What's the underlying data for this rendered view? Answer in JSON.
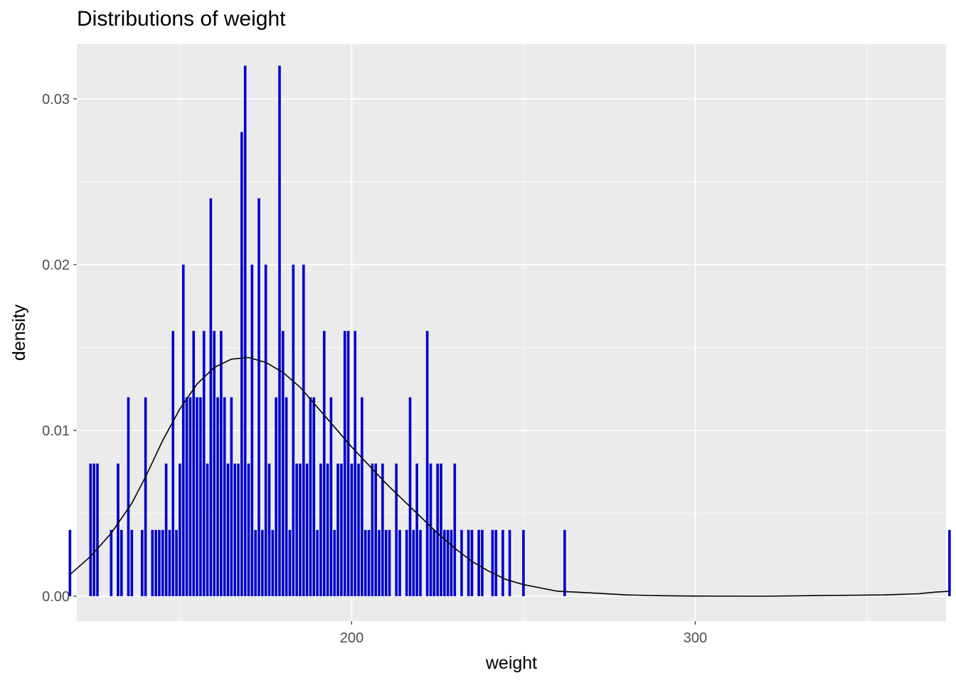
{
  "chart_data": {
    "type": "histogram",
    "title": "Distributions of weight",
    "xlabel": "weight",
    "ylabel": "density",
    "xlim": [
      120,
      373
    ],
    "ylim": [
      -0.0015,
      0.0333
    ],
    "x_ticks": [
      200,
      300
    ],
    "x_tick_labels": [
      "200",
      "300"
    ],
    "x_minor": [
      150,
      250,
      350
    ],
    "y_ticks": [
      0.0,
      0.01,
      0.02,
      0.03
    ],
    "y_tick_labels": [
      "0.00",
      "0.01",
      "0.02",
      "0.03"
    ],
    "y_minor": [
      0.005,
      0.015,
      0.025
    ],
    "bin_width": 1,
    "bar_color": "#0000cd",
    "density_color": "#000000",
    "panel_color": "#ebebeb",
    "grid_color": "#ffffff",
    "bars": [
      {
        "x": 118,
        "y": 0.004
      },
      {
        "x": 124,
        "y": 0.008
      },
      {
        "x": 125,
        "y": 0.008
      },
      {
        "x": 126,
        "y": 0.008
      },
      {
        "x": 130,
        "y": 0.004
      },
      {
        "x": 132,
        "y": 0.008
      },
      {
        "x": 133,
        "y": 0.004
      },
      {
        "x": 135,
        "y": 0.012
      },
      {
        "x": 136,
        "y": 0.004
      },
      {
        "x": 139,
        "y": 0.004
      },
      {
        "x": 140,
        "y": 0.012
      },
      {
        "x": 142,
        "y": 0.004
      },
      {
        "x": 143,
        "y": 0.004
      },
      {
        "x": 144,
        "y": 0.004
      },
      {
        "x": 145,
        "y": 0.004
      },
      {
        "x": 146,
        "y": 0.008
      },
      {
        "x": 147,
        "y": 0.004
      },
      {
        "x": 148,
        "y": 0.016
      },
      {
        "x": 149,
        "y": 0.004
      },
      {
        "x": 150,
        "y": 0.008
      },
      {
        "x": 151,
        "y": 0.02
      },
      {
        "x": 152,
        "y": 0.012
      },
      {
        "x": 153,
        "y": 0.012
      },
      {
        "x": 154,
        "y": 0.016
      },
      {
        "x": 155,
        "y": 0.012
      },
      {
        "x": 156,
        "y": 0.012
      },
      {
        "x": 157,
        "y": 0.016
      },
      {
        "x": 158,
        "y": 0.008
      },
      {
        "x": 159,
        "y": 0.024
      },
      {
        "x": 160,
        "y": 0.016
      },
      {
        "x": 161,
        "y": 0.012
      },
      {
        "x": 162,
        "y": 0.016
      },
      {
        "x": 163,
        "y": 0.012
      },
      {
        "x": 164,
        "y": 0.008
      },
      {
        "x": 165,
        "y": 0.012
      },
      {
        "x": 166,
        "y": 0.008
      },
      {
        "x": 167,
        "y": 0.008
      },
      {
        "x": 168,
        "y": 0.028
      },
      {
        "x": 169,
        "y": 0.032
      },
      {
        "x": 170,
        "y": 0.008
      },
      {
        "x": 171,
        "y": 0.02
      },
      {
        "x": 172,
        "y": 0.004
      },
      {
        "x": 173,
        "y": 0.024
      },
      {
        "x": 174,
        "y": 0.004
      },
      {
        "x": 175,
        "y": 0.02
      },
      {
        "x": 176,
        "y": 0.008
      },
      {
        "x": 177,
        "y": 0.004
      },
      {
        "x": 178,
        "y": 0.012
      },
      {
        "x": 179,
        "y": 0.032
      },
      {
        "x": 180,
        "y": 0.016
      },
      {
        "x": 181,
        "y": 0.012
      },
      {
        "x": 182,
        "y": 0.004
      },
      {
        "x": 183,
        "y": 0.02
      },
      {
        "x": 184,
        "y": 0.008
      },
      {
        "x": 185,
        "y": 0.008
      },
      {
        "x": 186,
        "y": 0.02
      },
      {
        "x": 187,
        "y": 0.008
      },
      {
        "x": 188,
        "y": 0.012
      },
      {
        "x": 189,
        "y": 0.012
      },
      {
        "x": 190,
        "y": 0.004
      },
      {
        "x": 191,
        "y": 0.008
      },
      {
        "x": 192,
        "y": 0.016
      },
      {
        "x": 193,
        "y": 0.008
      },
      {
        "x": 194,
        "y": 0.012
      },
      {
        "x": 195,
        "y": 0.004
      },
      {
        "x": 196,
        "y": 0.008
      },
      {
        "x": 197,
        "y": 0.008
      },
      {
        "x": 198,
        "y": 0.016
      },
      {
        "x": 199,
        "y": 0.016
      },
      {
        "x": 200,
        "y": 0.008
      },
      {
        "x": 201,
        "y": 0.016
      },
      {
        "x": 202,
        "y": 0.008
      },
      {
        "x": 203,
        "y": 0.012
      },
      {
        "x": 204,
        "y": 0.004
      },
      {
        "x": 205,
        "y": 0.004
      },
      {
        "x": 206,
        "y": 0.008
      },
      {
        "x": 207,
        "y": 0.008
      },
      {
        "x": 208,
        "y": 0.004
      },
      {
        "x": 209,
        "y": 0.008
      },
      {
        "x": 210,
        "y": 0.004
      },
      {
        "x": 211,
        "y": 0.004
      },
      {
        "x": 213,
        "y": 0.008
      },
      {
        "x": 214,
        "y": 0.004
      },
      {
        "x": 216,
        "y": 0.004
      },
      {
        "x": 217,
        "y": 0.012
      },
      {
        "x": 218,
        "y": 0.004
      },
      {
        "x": 219,
        "y": 0.008
      },
      {
        "x": 220,
        "y": 0.004
      },
      {
        "x": 222,
        "y": 0.016
      },
      {
        "x": 223,
        "y": 0.008
      },
      {
        "x": 224,
        "y": 0.004
      },
      {
        "x": 225,
        "y": 0.008
      },
      {
        "x": 226,
        "y": 0.008
      },
      {
        "x": 227,
        "y": 0.004
      },
      {
        "x": 228,
        "y": 0.004
      },
      {
        "x": 229,
        "y": 0.004
      },
      {
        "x": 230,
        "y": 0.008
      },
      {
        "x": 232,
        "y": 0.004
      },
      {
        "x": 234,
        "y": 0.004
      },
      {
        "x": 235,
        "y": 0.004
      },
      {
        "x": 237,
        "y": 0.004
      },
      {
        "x": 238,
        "y": 0.004
      },
      {
        "x": 241,
        "y": 0.004
      },
      {
        "x": 242,
        "y": 0.004
      },
      {
        "x": 244,
        "y": 0.004
      },
      {
        "x": 246,
        "y": 0.004
      },
      {
        "x": 250,
        "y": 0.004
      },
      {
        "x": 262,
        "y": 0.004
      },
      {
        "x": 374,
        "y": 0.004
      }
    ],
    "density_curve": [
      [
        118,
        0.0013
      ],
      [
        124,
        0.0024
      ],
      [
        130,
        0.0038
      ],
      [
        136,
        0.0056
      ],
      [
        140,
        0.0072
      ],
      [
        145,
        0.0094
      ],
      [
        150,
        0.0113
      ],
      [
        155,
        0.0128
      ],
      [
        160,
        0.0138
      ],
      [
        165,
        0.0143
      ],
      [
        170,
        0.0144
      ],
      [
        175,
        0.0141
      ],
      [
        180,
        0.0135
      ],
      [
        185,
        0.0126
      ],
      [
        190,
        0.0114
      ],
      [
        195,
        0.0102
      ],
      [
        200,
        0.009
      ],
      [
        205,
        0.0079
      ],
      [
        210,
        0.0068
      ],
      [
        215,
        0.0058
      ],
      [
        220,
        0.0048
      ],
      [
        225,
        0.0038
      ],
      [
        230,
        0.0029
      ],
      [
        235,
        0.0021
      ],
      [
        240,
        0.0015
      ],
      [
        245,
        0.001
      ],
      [
        250,
        0.0007
      ],
      [
        255,
        0.0005
      ],
      [
        260,
        0.0003
      ],
      [
        265,
        0.00025
      ],
      [
        270,
        0.0002
      ],
      [
        280,
        8e-05
      ],
      [
        290,
        3e-05
      ],
      [
        300,
        1e-05
      ],
      [
        320,
        0.0
      ],
      [
        340,
        5e-05
      ],
      [
        355,
        8e-05
      ],
      [
        365,
        0.00015
      ],
      [
        370,
        0.00025
      ],
      [
        374,
        0.0003
      ]
    ]
  }
}
